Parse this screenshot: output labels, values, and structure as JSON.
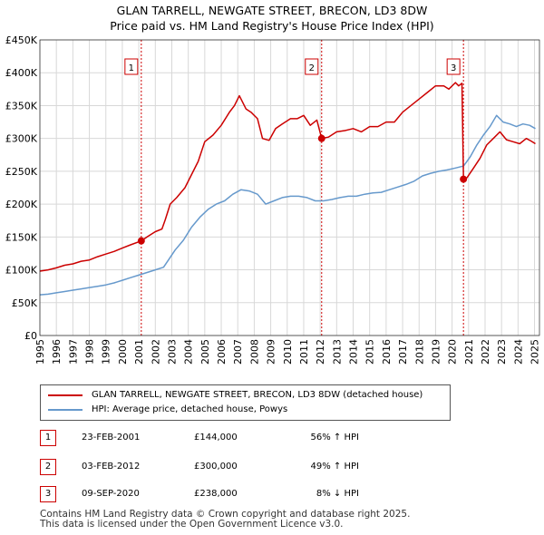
{
  "title_line1": "GLAN TARRELL, NEWGATE STREET, BRECON, LD3 8DW",
  "title_line2": "Price paid vs. HM Land Registry's House Price Index (HPI)",
  "legend": {
    "property_label": "GLAN TARRELL, NEWGATE STREET, BRECON, LD3 8DW (detached house)",
    "hpi_label": "HPI: Average price, detached house, Powys",
    "property_color": "#cc0000",
    "hpi_color": "#6699cc"
  },
  "transactions": [
    {
      "num": "1",
      "date": "23-FEB-2001",
      "price": "£144,000",
      "hpi_change": "56% ↑ HPI"
    },
    {
      "num": "2",
      "date": "03-FEB-2012",
      "price": "£300,000",
      "hpi_change": "49% ↑ HPI"
    },
    {
      "num": "3",
      "date": "09-SEP-2020",
      "price": "£238,000",
      "hpi_change": "8% ↓ HPI"
    }
  ],
  "footer_line1": "Contains HM Land Registry data © Crown copyright and database right 2025.",
  "footer_line2": "This data is licensed under the Open Government Licence v3.0.",
  "chart_data": {
    "type": "line",
    "title": "GLAN TARRELL, NEWGATE STREET, BRECON, LD3 8DW",
    "subtitle": "Price paid vs. HM Land Registry's House Price Index (HPI)",
    "xlabel": "",
    "ylabel": "",
    "xlim": [
      1995,
      2025.3
    ],
    "ylim": [
      0,
      450000
    ],
    "x_ticks": [
      1995,
      1996,
      1997,
      1998,
      1999,
      2000,
      2001,
      2002,
      2003,
      2004,
      2005,
      2006,
      2007,
      2008,
      2009,
      2010,
      2011,
      2012,
      2013,
      2014,
      2015,
      2016,
      2017,
      2018,
      2019,
      2020,
      2021,
      2022,
      2023,
      2024,
      2025
    ],
    "y_ticks": [
      {
        "value": 0,
        "label": "£0"
      },
      {
        "value": 50000,
        "label": "£50K"
      },
      {
        "value": 100000,
        "label": "£100K"
      },
      {
        "value": 150000,
        "label": "£150K"
      },
      {
        "value": 200000,
        "label": "£200K"
      },
      {
        "value": 250000,
        "label": "£250K"
      },
      {
        "value": 300000,
        "label": "£300K"
      },
      {
        "value": 350000,
        "label": "£350K"
      },
      {
        "value": 400000,
        "label": "£400K"
      },
      {
        "value": 450000,
        "label": "£450K"
      }
    ],
    "grid": true,
    "series": [
      {
        "name": "GLAN TARRELL, NEWGATE STREET, BRECON, LD3 8DW (detached house)",
        "color": "#cc0000",
        "points": [
          [
            1995,
            98000
          ],
          [
            1995.5,
            100000
          ],
          [
            1996,
            103000
          ],
          [
            1996.5,
            107000
          ],
          [
            1997,
            109000
          ],
          [
            1997.5,
            113000
          ],
          [
            1998,
            115000
          ],
          [
            1998.5,
            120000
          ],
          [
            1999,
            124000
          ],
          [
            1999.5,
            128000
          ],
          [
            2000,
            133000
          ],
          [
            2000.5,
            138000
          ],
          [
            2001.15,
            144000
          ],
          [
            2001.5,
            150000
          ],
          [
            2002,
            158000
          ],
          [
            2002.4,
            162000
          ],
          [
            2002.6,
            176000
          ],
          [
            2002.9,
            200000
          ],
          [
            2003.3,
            210000
          ],
          [
            2003.8,
            225000
          ],
          [
            2004.2,
            245000
          ],
          [
            2004.6,
            265000
          ],
          [
            2005,
            295000
          ],
          [
            2005.5,
            305000
          ],
          [
            2006,
            320000
          ],
          [
            2006.5,
            340000
          ],
          [
            2006.8,
            350000
          ],
          [
            2007.1,
            365000
          ],
          [
            2007.5,
            345000
          ],
          [
            2007.8,
            340000
          ],
          [
            2008.2,
            330000
          ],
          [
            2008.5,
            300000
          ],
          [
            2008.9,
            297000
          ],
          [
            2009.3,
            315000
          ],
          [
            2009.7,
            322000
          ],
          [
            2010.2,
            330000
          ],
          [
            2010.6,
            330000
          ],
          [
            2011,
            335000
          ],
          [
            2011.4,
            320000
          ],
          [
            2011.8,
            328000
          ],
          [
            2012.09,
            300000
          ],
          [
            2012.5,
            302000
          ],
          [
            2013,
            310000
          ],
          [
            2013.5,
            312000
          ],
          [
            2014,
            315000
          ],
          [
            2014.5,
            310000
          ],
          [
            2015,
            318000
          ],
          [
            2015.5,
            318000
          ],
          [
            2016,
            325000
          ],
          [
            2016.5,
            325000
          ],
          [
            2017,
            340000
          ],
          [
            2017.5,
            350000
          ],
          [
            2018,
            360000
          ],
          [
            2018.5,
            370000
          ],
          [
            2019,
            380000
          ],
          [
            2019.5,
            380000
          ],
          [
            2019.8,
            375000
          ],
          [
            2020.2,
            385000
          ],
          [
            2020.4,
            380000
          ],
          [
            2020.6,
            384000
          ],
          [
            2020.69,
            238000
          ],
          [
            2020.9,
            240000
          ],
          [
            2021.3,
            255000
          ],
          [
            2021.7,
            270000
          ],
          [
            2022.1,
            290000
          ],
          [
            2022.5,
            300000
          ],
          [
            2022.9,
            310000
          ],
          [
            2023.3,
            298000
          ],
          [
            2023.7,
            295000
          ],
          [
            2024.1,
            292000
          ],
          [
            2024.5,
            300000
          ],
          [
            2024.8,
            296000
          ],
          [
            2025.05,
            292000
          ]
        ]
      },
      {
        "name": "HPI: Average price, detached house, Powys",
        "color": "#6699cc",
        "points": [
          [
            1995,
            62000
          ],
          [
            1995.5,
            63000
          ],
          [
            1996,
            65000
          ],
          [
            1996.5,
            67000
          ],
          [
            1997,
            69000
          ],
          [
            1997.5,
            71000
          ],
          [
            1998,
            73000
          ],
          [
            1998.5,
            75000
          ],
          [
            1999,
            77000
          ],
          [
            1999.5,
            80000
          ],
          [
            2000,
            84000
          ],
          [
            2000.5,
            88000
          ],
          [
            2001,
            92000
          ],
          [
            2001.5,
            96000
          ],
          [
            2002,
            100000
          ],
          [
            2002.5,
            104000
          ],
          [
            2002.8,
            115000
          ],
          [
            2003.2,
            130000
          ],
          [
            2003.7,
            145000
          ],
          [
            2004.2,
            165000
          ],
          [
            2004.7,
            180000
          ],
          [
            2005.2,
            192000
          ],
          [
            2005.7,
            200000
          ],
          [
            2006.2,
            205000
          ],
          [
            2006.7,
            215000
          ],
          [
            2007.2,
            222000
          ],
          [
            2007.7,
            220000
          ],
          [
            2008.2,
            215000
          ],
          [
            2008.7,
            200000
          ],
          [
            2009.2,
            205000
          ],
          [
            2009.7,
            210000
          ],
          [
            2010.2,
            212000
          ],
          [
            2010.7,
            212000
          ],
          [
            2011.2,
            210000
          ],
          [
            2011.7,
            205000
          ],
          [
            2012.2,
            205000
          ],
          [
            2012.7,
            207000
          ],
          [
            2013.2,
            210000
          ],
          [
            2013.7,
            212000
          ],
          [
            2014.2,
            212000
          ],
          [
            2014.7,
            215000
          ],
          [
            2015.2,
            217000
          ],
          [
            2015.7,
            218000
          ],
          [
            2016.2,
            222000
          ],
          [
            2016.7,
            226000
          ],
          [
            2017.2,
            230000
          ],
          [
            2017.7,
            235000
          ],
          [
            2018.2,
            243000
          ],
          [
            2018.7,
            247000
          ],
          [
            2019.2,
            250000
          ],
          [
            2019.7,
            252000
          ],
          [
            2020.2,
            255000
          ],
          [
            2020.7,
            258000
          ],
          [
            2021.1,
            272000
          ],
          [
            2021.5,
            290000
          ],
          [
            2021.9,
            305000
          ],
          [
            2022.3,
            318000
          ],
          [
            2022.7,
            335000
          ],
          [
            2023.1,
            325000
          ],
          [
            2023.5,
            322000
          ],
          [
            2023.9,
            318000
          ],
          [
            2024.3,
            322000
          ],
          [
            2024.7,
            320000
          ],
          [
            2025.05,
            315000
          ]
        ]
      }
    ],
    "markers": [
      {
        "label": "1",
        "x": 2001.15,
        "y": 144000
      },
      {
        "label": "2",
        "x": 2012.09,
        "y": 300000
      },
      {
        "label": "3",
        "x": 2020.69,
        "y": 238000
      }
    ]
  }
}
